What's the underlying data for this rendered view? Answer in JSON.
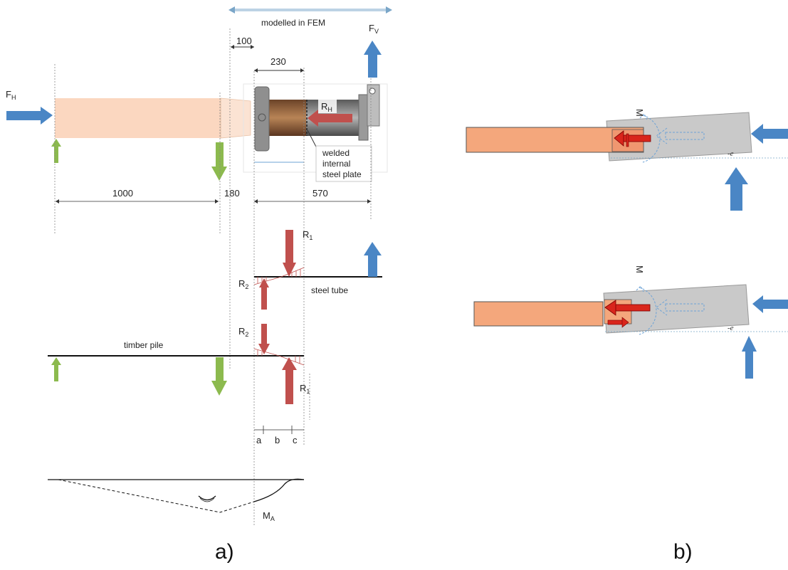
{
  "panel_a": {
    "caption": "a)",
    "top": {
      "modelled_label": "modelled in FEM",
      "dim_100": "100",
      "dim_230": "230",
      "fh_main": "F",
      "fh_sub": "H",
      "fv_main": "F",
      "fv_sub": "V",
      "rh_main": "R",
      "rh_sub": "H",
      "plate_line1": "welded",
      "plate_line2": "internal",
      "plate_line3": "steel plate",
      "dim_1000": "1000",
      "dim_180": "180",
      "dim_570": "570"
    },
    "steel_tube": {
      "label": "steel tube",
      "r1_main": "R",
      "r1_sub": "1",
      "r2_main": "R",
      "r2_sub": "2"
    },
    "timber_pile": {
      "label": "timber pile",
      "r2_main": "R",
      "r2_sub": "2",
      "r1_main": "R",
      "r1_sub": "1"
    },
    "segments": {
      "a": "a",
      "b": "b",
      "c": "c"
    },
    "moment": {
      "ma_main": "M",
      "ma_sub": "A"
    }
  },
  "panel_b": {
    "caption": "b)",
    "upper": {
      "m_label": "M"
    },
    "lower": {
      "m_label": "M"
    }
  },
  "colors": {
    "timber": "#f4a77c",
    "timber_light": "#fbd7c0",
    "steel": "#c9c9c9",
    "bronze": "#a36e45",
    "blue_arrow": "#4a86c5",
    "green_arrow": "#8cba4e",
    "red_arrow": "#c0504d",
    "red_bright": "#d9261c"
  }
}
